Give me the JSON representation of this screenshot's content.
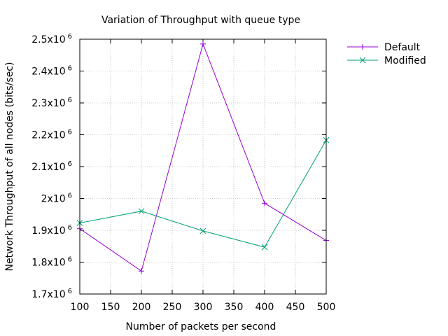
{
  "chart_data": {
    "type": "line",
    "title": "Variation of Throughput with queue type",
    "xlabel": "Number of packets per second",
    "ylabel": "Network Throughput of all nodes (bits/sec)",
    "x": [
      100,
      200,
      300,
      400,
      500
    ],
    "xlim": [
      100,
      500
    ],
    "ylim": [
      1700000,
      2500000
    ],
    "xticks": [
      100,
      150,
      200,
      250,
      300,
      350,
      400,
      450,
      500
    ],
    "yticks": [
      {
        "value": 1700000,
        "mantissa": "1.7x10",
        "exp": "6"
      },
      {
        "value": 1800000,
        "mantissa": "1.8x10",
        "exp": "6"
      },
      {
        "value": 1900000,
        "mantissa": "1.9x10",
        "exp": "6"
      },
      {
        "value": 2000000,
        "mantissa": "2x10",
        "exp": "6"
      },
      {
        "value": 2100000,
        "mantissa": "2.1x10",
        "exp": "6"
      },
      {
        "value": 2200000,
        "mantissa": "2.2x10",
        "exp": "6"
      },
      {
        "value": 2300000,
        "mantissa": "2.3x10",
        "exp": "6"
      },
      {
        "value": 2400000,
        "mantissa": "2.4x10",
        "exp": "6"
      },
      {
        "value": 2500000,
        "mantissa": "2.5x10",
        "exp": "6"
      }
    ],
    "grid": true,
    "legend_position": "outside-top-right",
    "series": [
      {
        "name": "Default",
        "color": "#9400d3",
        "marker": "plus",
        "values": [
          1905000,
          1772000,
          2485000,
          1985000,
          1868000
        ]
      },
      {
        "name": "Modified",
        "color": "#009e73",
        "marker": "cross",
        "values": [
          1923000,
          1960000,
          1898000,
          1847000,
          2183000
        ]
      }
    ]
  }
}
